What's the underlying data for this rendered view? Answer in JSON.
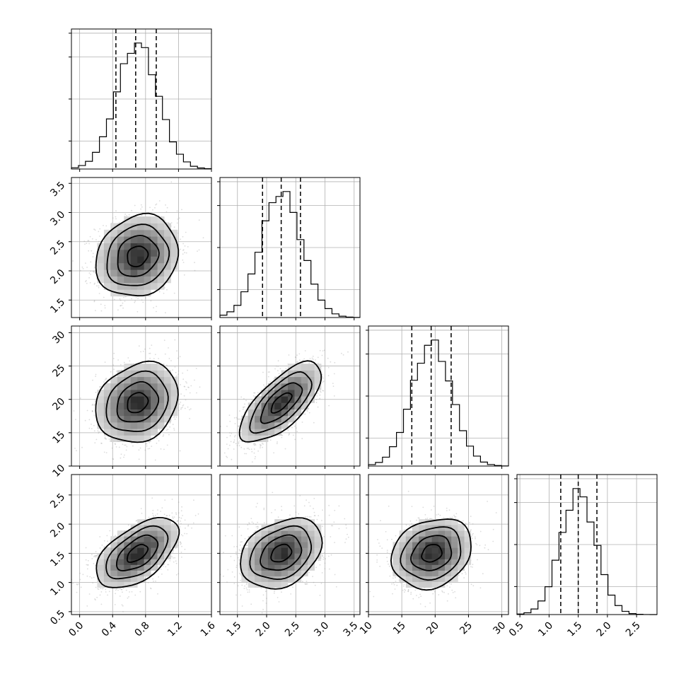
{
  "chart_data": {
    "type": "corner",
    "parameters": [
      {
        "mean": 0.7,
        "sd": 0.25,
        "quantiles": [
          0.44,
          0.68,
          0.93
        ],
        "range": [
          -0.1,
          1.6
        ],
        "ticks": [
          0.0,
          0.4,
          0.8,
          1.2,
          1.6
        ],
        "tick_labels": [
          "0.0",
          "0.4",
          "0.8",
          "1.2",
          "1.6"
        ]
      },
      {
        "mean": 2.25,
        "sd": 0.35,
        "quantiles": [
          1.93,
          2.25,
          2.58
        ],
        "range": [
          1.2,
          3.6
        ],
        "ticks": [
          1.5,
          2.0,
          2.5,
          3.0,
          3.5
        ],
        "tick_labels": [
          "1.5",
          "2.0",
          "2.5",
          "3.0",
          "3.5"
        ]
      },
      {
        "mean": 19.5,
        "sd": 3.0,
        "quantiles": [
          16.5,
          19.4,
          22.4
        ],
        "range": [
          10,
          31
        ],
        "ticks": [
          10,
          15,
          20,
          25,
          30
        ],
        "tick_labels": [
          "10",
          "15",
          "20",
          "25",
          "30"
        ]
      },
      {
        "mean": 1.5,
        "sd": 0.3,
        "quantiles": [
          1.2,
          1.5,
          1.82
        ],
        "range": [
          0.45,
          2.85
        ],
        "ticks": [
          0.5,
          1.0,
          1.5,
          2.0,
          2.5
        ],
        "tick_labels": [
          "0.5",
          "1.0",
          "1.5",
          "2.0",
          "2.5"
        ]
      }
    ],
    "correlations": {
      "1_0": 0.15,
      "2_0": 0.2,
      "2_1": 0.7,
      "3_0": 0.55,
      "3_1": 0.3,
      "3_2": 0.2
    },
    "histogram_bins": 20,
    "contour_levels_sigma": [
      0.5,
      1.0,
      1.5,
      2.0
    ],
    "grid": true,
    "colors": {
      "line": "#000000",
      "scatter": "#9a9a9a",
      "grid": "#b0b0b0"
    }
  }
}
